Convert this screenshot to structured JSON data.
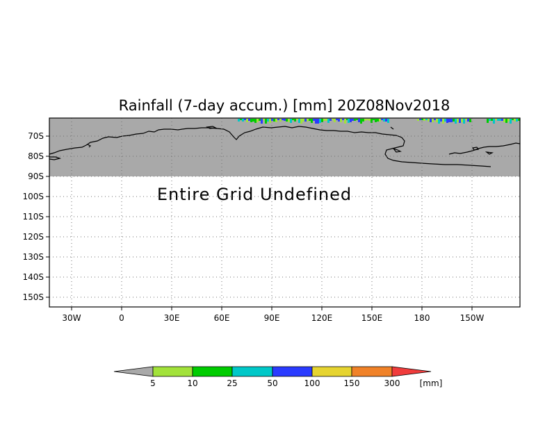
{
  "title": "Rainfall (7-day accum.) [mm] 20Z08Nov2018",
  "map_message": "Entire Grid Undefined",
  "colors": {
    "undefined_fill": "#a9a9a9",
    "plot_background": "#ffffff",
    "coastline": "#000000",
    "rain_patches": [
      "#00cc00",
      "#a2e23a",
      "#00c8c8",
      "#2a3bff"
    ]
  },
  "y_axis": {
    "labels": [
      "70S",
      "80S",
      "90S",
      "100S",
      "110S",
      "120S",
      "130S",
      "140S",
      "150S"
    ]
  },
  "x_axis": {
    "labels": [
      "30W",
      "0",
      "30E",
      "60E",
      "90E",
      "120E",
      "150E",
      "180",
      "150W"
    ]
  },
  "colorbar": {
    "under_color": "#a9a9a9",
    "over_color": "#f03c3c",
    "colors": [
      "#a2e23a",
      "#00cc00",
      "#00c8c8",
      "#2a3bff",
      "#e6d430",
      "#f08228"
    ],
    "labels": [
      "5",
      "10",
      "25",
      "50",
      "100",
      "150",
      "300"
    ],
    "units": "[mm]"
  }
}
